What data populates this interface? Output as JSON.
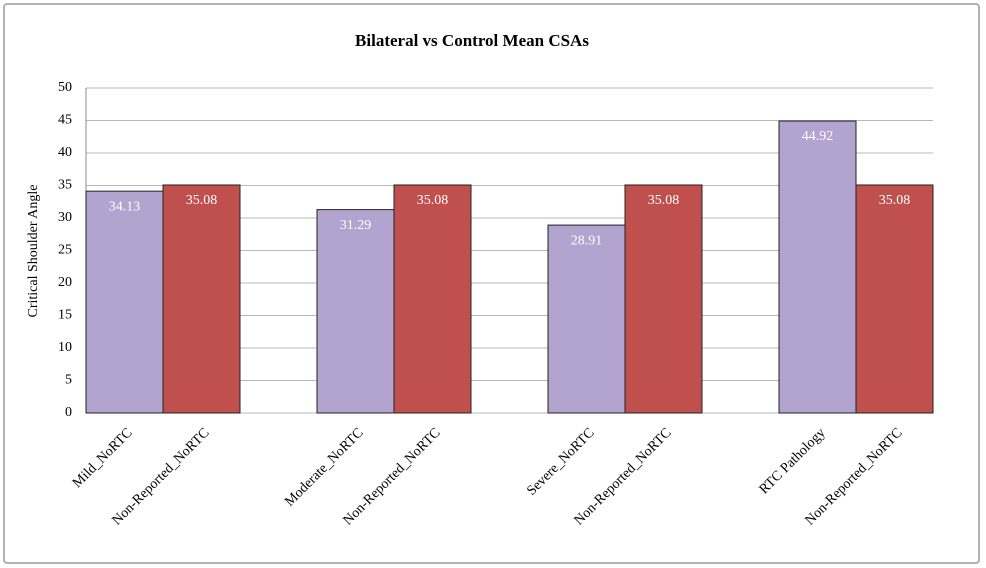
{
  "chart_data": {
    "type": "bar",
    "title": "Bilateral vs Control Mean CSAs",
    "y_label": "Critical Shoulder Angle",
    "categories": [
      "Mild_NoRTC",
      "Non-Reported_NoRTC",
      "Moderate_NoRTC",
      "Non-Reported_NoRTC",
      "Severe_NoRTC",
      "Non-Reported_NoRTC",
      "RTC Pathology",
      "Non-Reported_NoRTC"
    ],
    "values": [
      34.13,
      35.08,
      31.29,
      35.08,
      28.91,
      35.08,
      44.92,
      35.08
    ],
    "colors": [
      "#b2a3cf",
      "#c0504d",
      "#b2a3cf",
      "#c0504d",
      "#b2a3cf",
      "#c0504d",
      "#b2a3cf",
      "#c0504d"
    ],
    "ylim": [
      0,
      50
    ],
    "yticks": [
      0,
      5,
      10,
      15,
      20,
      25,
      30,
      35,
      40,
      45,
      50
    ],
    "grid": true
  }
}
